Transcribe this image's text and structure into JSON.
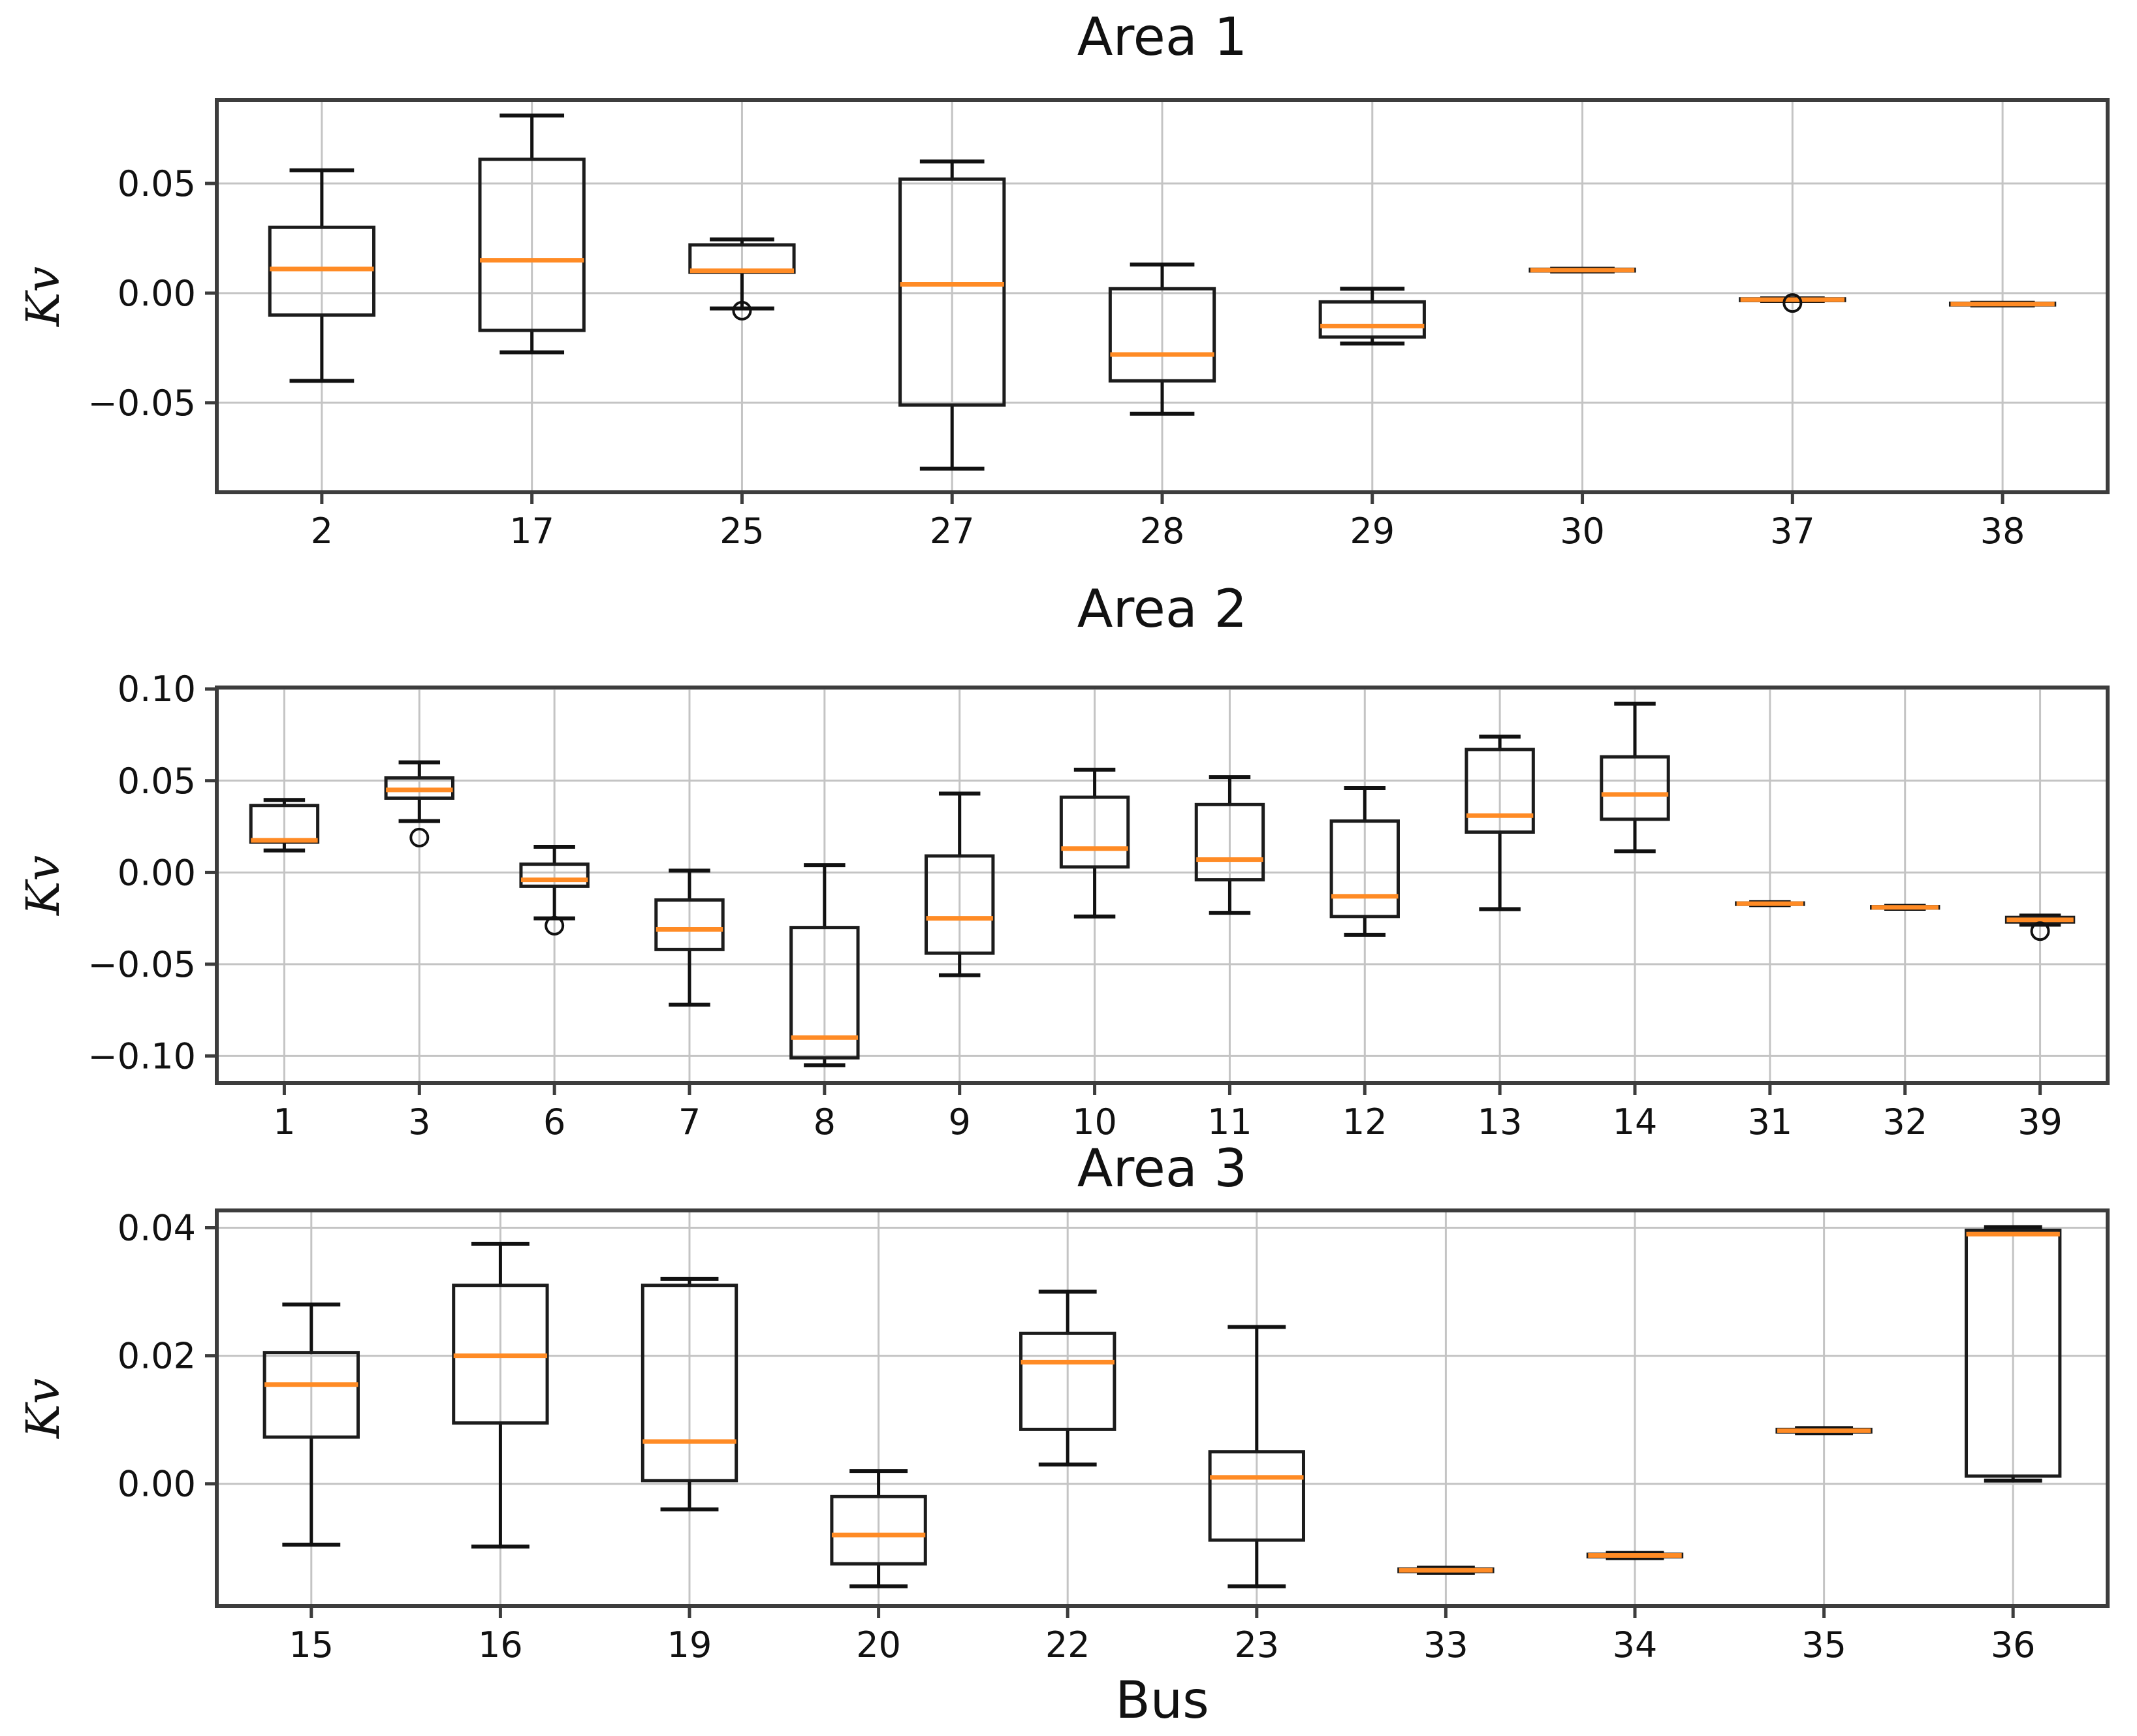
{
  "labels": {
    "ylabel": "Kv",
    "xlabel": "Bus"
  },
  "colors": {
    "background": "#ffffff",
    "box_edge": "#1c1c1c",
    "median": "#ff8b25",
    "whisker": "#111111",
    "grid": "#c4c4c4",
    "spine": "#3d3d3d",
    "text": "#111111"
  },
  "chart_data": [
    {
      "type": "boxplot",
      "title": "Area 1",
      "xlabel": "",
      "ylabel": "Kv",
      "grid": true,
      "ylim": [
        -0.0908,
        0.0881
      ],
      "yticks": [
        {
          "v": 0.05,
          "label": "0.05"
        },
        {
          "v": 0.0,
          "label": "0.00"
        },
        {
          "v": -0.05,
          "label": "−0.05"
        }
      ],
      "boxes": [
        {
          "bus": "2",
          "lo": -0.04,
          "q1": -0.01,
          "med": 0.011,
          "q3": 0.03,
          "hi": 0.056,
          "fliers": []
        },
        {
          "bus": "17",
          "lo": -0.027,
          "q1": -0.017,
          "med": 0.015,
          "q3": 0.061,
          "hi": 0.081,
          "fliers": []
        },
        {
          "bus": "25",
          "lo": -0.007,
          "q1": 0.0095,
          "med": 0.0102,
          "q3": 0.022,
          "hi": 0.0245,
          "fliers": [
            -0.008
          ]
        },
        {
          "bus": "27",
          "lo": -0.08,
          "q1": -0.051,
          "med": 0.004,
          "q3": 0.052,
          "hi": 0.06,
          "fliers": []
        },
        {
          "bus": "28",
          "lo": -0.055,
          "q1": -0.04,
          "med": -0.028,
          "q3": 0.002,
          "hi": 0.013,
          "fliers": []
        },
        {
          "bus": "29",
          "lo": -0.023,
          "q1": -0.02,
          "med": -0.015,
          "q3": -0.004,
          "hi": 0.002,
          "fliers": []
        },
        {
          "bus": "30",
          "lo": 0.0099,
          "q1": 0.0101,
          "med": 0.0105,
          "q3": 0.0109,
          "hi": 0.0111,
          "fliers": []
        },
        {
          "bus": "37",
          "lo": -0.0036,
          "q1": -0.0034,
          "med": -0.003,
          "q3": -0.0026,
          "hi": -0.0024,
          "fliers": [
            -0.0045
          ]
        },
        {
          "bus": "38",
          "lo": -0.0056,
          "q1": -0.0054,
          "med": -0.005,
          "q3": -0.0046,
          "hi": -0.0044,
          "fliers": []
        }
      ]
    },
    {
      "type": "boxplot",
      "title": "Area 2",
      "xlabel": "",
      "ylabel": "Kv",
      "grid": true,
      "ylim": [
        -0.1148,
        0.1008
      ],
      "yticks": [
        {
          "v": 0.1,
          "label": "0.10"
        },
        {
          "v": 0.05,
          "label": "0.05"
        },
        {
          "v": 0.0,
          "label": "0.00"
        },
        {
          "v": -0.05,
          "label": "−0.05"
        },
        {
          "v": -0.1,
          "label": "−0.10"
        }
      ],
      "boxes": [
        {
          "bus": "1",
          "lo": 0.012,
          "q1": 0.0165,
          "med": 0.0175,
          "q3": 0.0365,
          "hi": 0.0395,
          "fliers": []
        },
        {
          "bus": "3",
          "lo": 0.028,
          "q1": 0.0405,
          "med": 0.045,
          "q3": 0.0515,
          "hi": 0.06,
          "fliers": [
            0.019
          ]
        },
        {
          "bus": "6",
          "lo": -0.025,
          "q1": -0.0075,
          "med": -0.004,
          "q3": 0.0045,
          "hi": 0.014,
          "fliers": [
            -0.029
          ]
        },
        {
          "bus": "7",
          "lo": -0.072,
          "q1": -0.042,
          "med": -0.031,
          "q3": -0.015,
          "hi": 0.001,
          "fliers": []
        },
        {
          "bus": "8",
          "lo": -0.105,
          "q1": -0.101,
          "med": -0.09,
          "q3": -0.03,
          "hi": 0.004,
          "fliers": []
        },
        {
          "bus": "9",
          "lo": -0.056,
          "q1": -0.044,
          "med": -0.025,
          "q3": 0.009,
          "hi": 0.043,
          "fliers": []
        },
        {
          "bus": "10",
          "lo": -0.024,
          "q1": 0.003,
          "med": 0.013,
          "q3": 0.041,
          "hi": 0.056,
          "fliers": []
        },
        {
          "bus": "11",
          "lo": -0.022,
          "q1": -0.004,
          "med": 0.007,
          "q3": 0.037,
          "hi": 0.052,
          "fliers": []
        },
        {
          "bus": "12",
          "lo": -0.034,
          "q1": -0.024,
          "med": -0.013,
          "q3": 0.028,
          "hi": 0.046,
          "fliers": []
        },
        {
          "bus": "13",
          "lo": -0.02,
          "q1": 0.022,
          "med": 0.031,
          "q3": 0.067,
          "hi": 0.074,
          "fliers": []
        },
        {
          "bus": "14",
          "lo": 0.0115,
          "q1": 0.029,
          "med": 0.0425,
          "q3": 0.063,
          "hi": 0.092,
          "fliers": []
        },
        {
          "bus": "31",
          "lo": -0.0178,
          "q1": -0.0174,
          "med": -0.017,
          "q3": -0.0166,
          "hi": -0.0162,
          "fliers": []
        },
        {
          "bus": "32",
          "lo": -0.0198,
          "q1": -0.0194,
          "med": -0.019,
          "q3": -0.0186,
          "hi": -0.0182,
          "fliers": []
        },
        {
          "bus": "39",
          "lo": -0.0285,
          "q1": -0.027,
          "med": -0.0258,
          "q3": -0.0245,
          "hi": -0.0235,
          "fliers": [
            -0.032
          ]
        }
      ]
    },
    {
      "type": "boxplot",
      "title": "Area 3",
      "xlabel": "Bus",
      "ylabel": "Kv",
      "grid": true,
      "ylim": [
        -0.0191,
        0.0427
      ],
      "yticks": [
        {
          "v": 0.04,
          "label": "0.04"
        },
        {
          "v": 0.02,
          "label": "0.02"
        },
        {
          "v": 0.0,
          "label": "0.00"
        }
      ],
      "boxes": [
        {
          "bus": "15",
          "lo": -0.0095,
          "q1": 0.0073,
          "med": 0.0155,
          "q3": 0.0205,
          "hi": 0.028,
          "fliers": []
        },
        {
          "bus": "16",
          "lo": -0.0098,
          "q1": 0.0095,
          "med": 0.02,
          "q3": 0.031,
          "hi": 0.0375,
          "fliers": []
        },
        {
          "bus": "19",
          "lo": -0.004,
          "q1": 0.0005,
          "med": 0.0066,
          "q3": 0.031,
          "hi": 0.032,
          "fliers": []
        },
        {
          "bus": "20",
          "lo": -0.016,
          "q1": -0.0125,
          "med": -0.008,
          "q3": -0.002,
          "hi": 0.002,
          "fliers": []
        },
        {
          "bus": "22",
          "lo": 0.003,
          "q1": 0.0085,
          "med": 0.019,
          "q3": 0.0235,
          "hi": 0.03,
          "fliers": []
        },
        {
          "bus": "23",
          "lo": -0.016,
          "q1": -0.0088,
          "med": 0.001,
          "q3": 0.005,
          "hi": 0.0245,
          "fliers": []
        },
        {
          "bus": "33",
          "lo": -0.0139,
          "q1": -0.0137,
          "med": -0.0135,
          "q3": -0.0133,
          "hi": -0.0131,
          "fliers": []
        },
        {
          "bus": "34",
          "lo": -0.0116,
          "q1": -0.0114,
          "med": -0.0112,
          "q3": -0.011,
          "hi": -0.0108,
          "fliers": []
        },
        {
          "bus": "35",
          "lo": 0.0079,
          "q1": 0.0081,
          "med": 0.0083,
          "q3": 0.0085,
          "hi": 0.0087,
          "fliers": []
        },
        {
          "bus": "36",
          "lo": 0.0005,
          "q1": 0.0012,
          "med": 0.039,
          "q3": 0.0396,
          "hi": 0.0401,
          "fliers": []
        }
      ]
    }
  ]
}
